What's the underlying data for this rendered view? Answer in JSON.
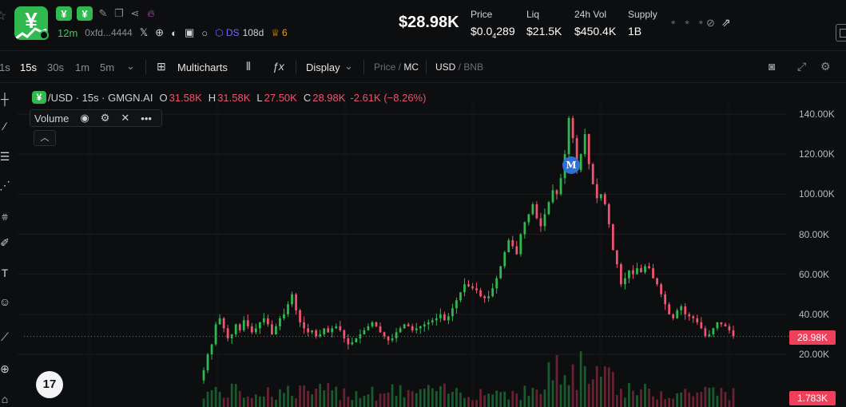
{
  "token": {
    "logo_glyph": "¥",
    "age": "12m",
    "address": "0xfd...4444",
    "dex_label": "DS",
    "holders": "108d",
    "crown_count": "6"
  },
  "header": {
    "market_cap": "$28.98K",
    "stats": [
      {
        "label": "Price",
        "value_main": "$0.0",
        "value_sub": "4",
        "value_tail": "289"
      },
      {
        "label": "Liq",
        "value": "$21.5K"
      },
      {
        "label": "24h Vol",
        "value": "$450.4K"
      },
      {
        "label": "Supply",
        "value": "1B"
      }
    ],
    "hidden_value": "* * *"
  },
  "toolbar": {
    "intervals": [
      "1s",
      "15s",
      "30s",
      "1m",
      "5m"
    ],
    "active_interval": "15s",
    "multicharts": "Multicharts",
    "display": "Display",
    "price_label": "Price",
    "mc_label": "MC",
    "usd_label": "USD",
    "bnb_label": "BNB"
  },
  "legend": {
    "pair": "/USD · 15s · GMGN.AI",
    "open_k": "O",
    "open_v": "31.58K",
    "high_k": "H",
    "high_v": "31.58K",
    "low_k": "L",
    "low_v": "27.50K",
    "close_k": "C",
    "close_v": "28.98K",
    "change": "-2.61K (−8.26%)",
    "volume_label": "Volume"
  },
  "chart_data": {
    "type": "candlestick",
    "y_ticks": [
      "140.00K",
      "120.00K",
      "100.00K",
      "80.00K",
      "60.00K",
      "40.00K",
      "20.00K"
    ],
    "ylim": [
      0,
      150000
    ],
    "current_price_label": "28.98K",
    "current_volume_label": "1.783K",
    "marker_label": "M",
    "up_color": "#2fb94e",
    "down_color": "#ef5472",
    "close_path_k": [
      7,
      12,
      20,
      25,
      35,
      38,
      33,
      28,
      30,
      35,
      32,
      37,
      34,
      31,
      33,
      36,
      38,
      35,
      30,
      34,
      38,
      40,
      45,
      50,
      42,
      36,
      33,
      31,
      32,
      29,
      30,
      33,
      31,
      33,
      34,
      32,
      28,
      25,
      26,
      28,
      30,
      32,
      34,
      36,
      34,
      31,
      29,
      27,
      28,
      31,
      33,
      35,
      34,
      32,
      33,
      34,
      35,
      36,
      37,
      38,
      40,
      37,
      39,
      43,
      47,
      51,
      55,
      54,
      53,
      52,
      49,
      48,
      49,
      53,
      58,
      64,
      71,
      77,
      74,
      70,
      80,
      86,
      90,
      95,
      88,
      84,
      90,
      96,
      102,
      100,
      108,
      120,
      138,
      128,
      112,
      120,
      130,
      115,
      105,
      98,
      100,
      95,
      85,
      72,
      65,
      55,
      58,
      62,
      60,
      63,
      61,
      64,
      63,
      58,
      55,
      50,
      45,
      40,
      38,
      42,
      44,
      40,
      39,
      38,
      36,
      33,
      29,
      30,
      33,
      36,
      35,
      34,
      32,
      29
    ]
  }
}
